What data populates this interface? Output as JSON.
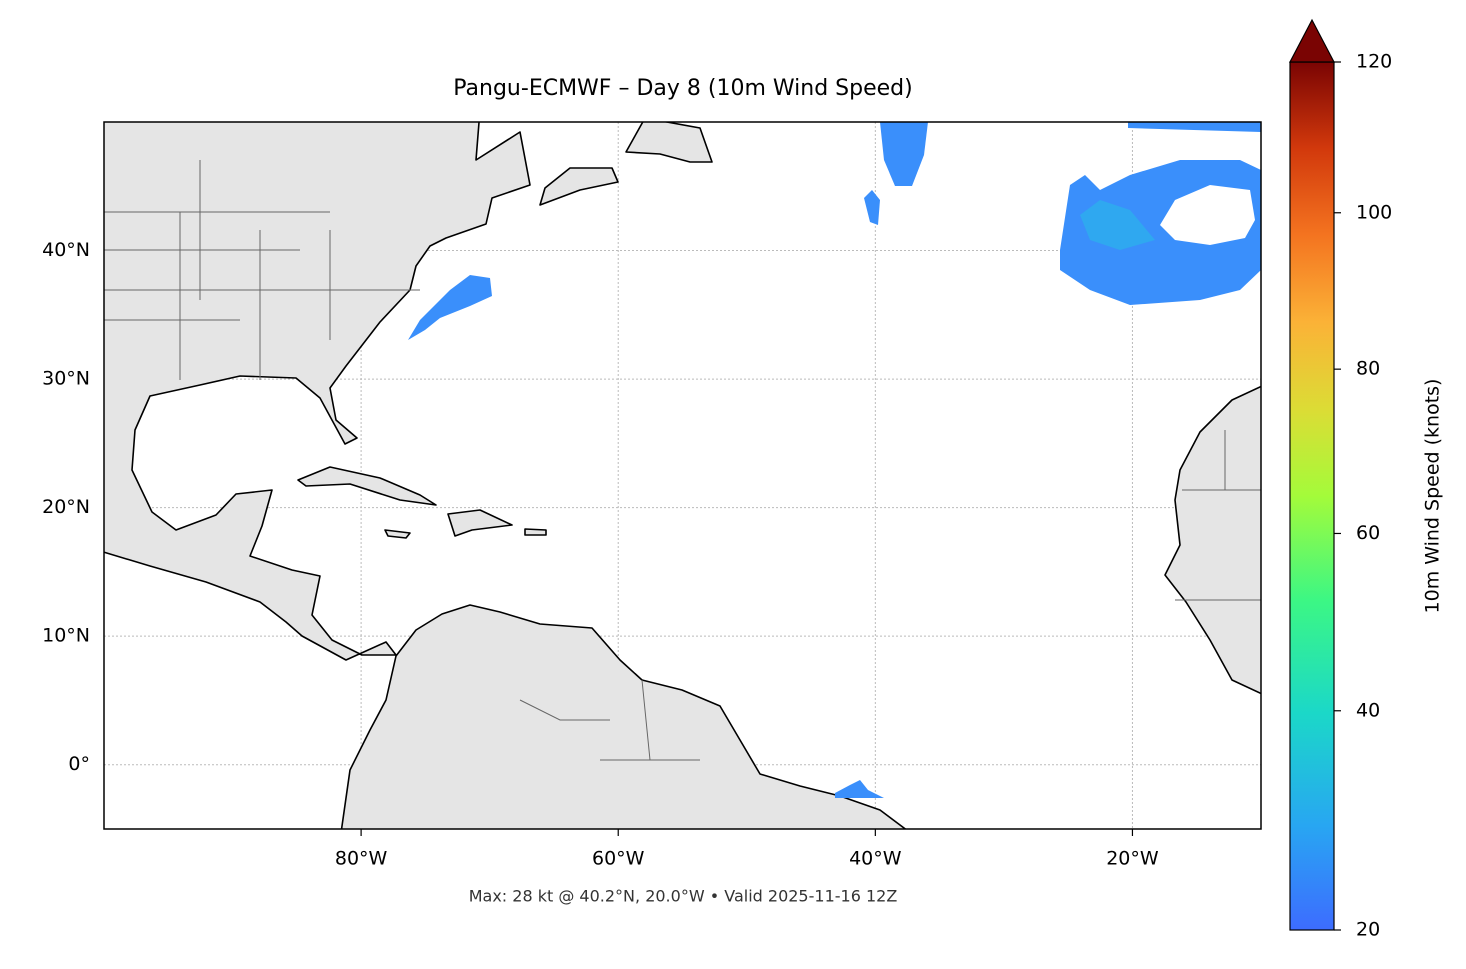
{
  "chart_data": {
    "type": "map",
    "title": "Pangu-ECMWF – Day 8 (10m Wind Speed)",
    "subtitle": "Max: 28 kt @ 40.2°N, 20.0°W • Valid 2025-11-16 12Z",
    "xlim": [
      -100,
      -10
    ],
    "ylim": [
      -5,
      50
    ],
    "xticks": [
      {
        "value": -80,
        "label": "80°W"
      },
      {
        "value": -60,
        "label": "60°W"
      },
      {
        "value": -40,
        "label": "40°W"
      },
      {
        "value": -20,
        "label": "20°W"
      }
    ],
    "yticks": [
      {
        "value": 0,
        "label": "0°"
      },
      {
        "value": 10,
        "label": "10°N"
      },
      {
        "value": 20,
        "label": "20°N"
      },
      {
        "value": 30,
        "label": "30°N"
      },
      {
        "value": 40,
        "label": "40°N"
      }
    ],
    "grid": true,
    "colorbar": {
      "label": "10m Wind Speed (knots)",
      "lim": [
        20,
        120
      ],
      "ticks": [
        20,
        40,
        60,
        80,
        100,
        120
      ]
    }
  }
}
